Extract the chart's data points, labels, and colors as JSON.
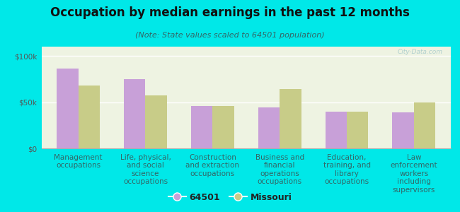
{
  "title": "Occupation by median earnings in the past 12 months",
  "subtitle": "(Note: State values scaled to 64501 population)",
  "categories": [
    "Management\noccupations",
    "Life, physical,\nand social\nscience\noccupations",
    "Construction\nand extraction\noccupations",
    "Business and\nfinancial\noperations\noccupations",
    "Education,\ntraining, and\nlibrary\noccupations",
    "Law\nenforcement\nworkers\nincluding\nsupervisors"
  ],
  "values_64501": [
    86000,
    75000,
    46000,
    44000,
    40000,
    39000
  ],
  "values_missouri": [
    68000,
    57000,
    46000,
    64000,
    40000,
    50000
  ],
  "color_64501": "#c8a0d8",
  "color_missouri": "#c8cc88",
  "background_color": "#00e8e8",
  "plot_bg_color": "#eef3e2",
  "ylim": [
    0,
    110000
  ],
  "ytick_labels": [
    "$0",
    "$50k",
    "$100k"
  ],
  "legend_label_64501": "64501",
  "legend_label_missouri": "Missouri",
  "watermark": "City-Data.com",
  "title_fontsize": 12,
  "subtitle_fontsize": 8,
  "tick_label_fontsize": 7.5,
  "legend_fontsize": 9,
  "title_color": "#111111",
  "subtitle_color": "#336666",
  "xlabel_color": "#336666",
  "ytick_color": "#555555",
  "watermark_color": "#aacccc"
}
